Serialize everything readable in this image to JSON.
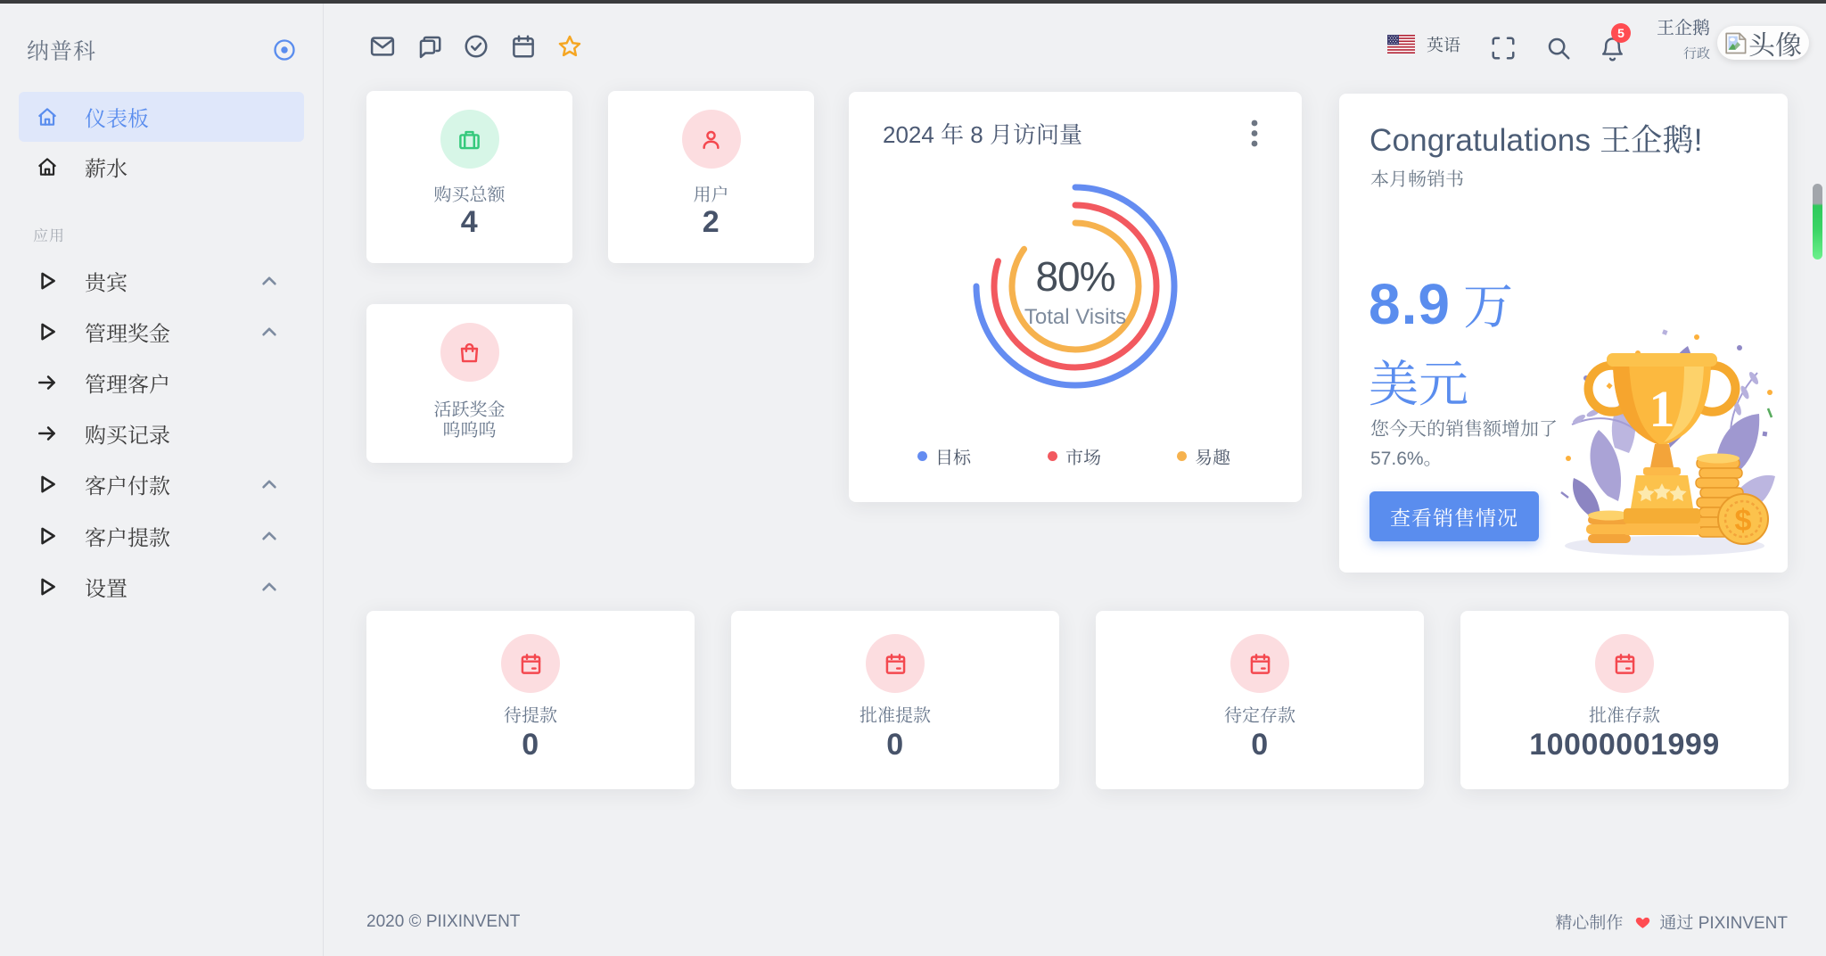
{
  "brand": {
    "name": "纳普科",
    "toggle_icon": "radio-circle-icon"
  },
  "sidebar": {
    "items": [
      {
        "type": "link",
        "label": "仪表板",
        "icon": "home-icon",
        "active": true
      },
      {
        "type": "link",
        "label": "薪水",
        "icon": "home-icon",
        "active": false
      },
      {
        "type": "section",
        "label": "应用"
      },
      {
        "type": "group",
        "label": "贵宾",
        "icon": "play-icon",
        "chevron": "chevron-up-icon"
      },
      {
        "type": "group",
        "label": "管理奖金",
        "icon": "play-icon",
        "chevron": "chevron-up-icon"
      },
      {
        "type": "link",
        "label": "管理客户",
        "icon": "arrow-right-icon",
        "active": false
      },
      {
        "type": "link",
        "label": "购买记录",
        "icon": "arrow-right-icon",
        "active": false
      },
      {
        "type": "group",
        "label": "客户付款",
        "icon": "play-icon",
        "chevron": "chevron-up-icon"
      },
      {
        "type": "group",
        "label": "客户提款",
        "icon": "play-icon",
        "chevron": "chevron-up-icon"
      },
      {
        "type": "group",
        "label": "设置",
        "icon": "play-icon",
        "chevron": "chevron-up-icon"
      }
    ]
  },
  "navbar": {
    "left_icons": [
      {
        "name": "mail-icon"
      },
      {
        "name": "chat-icon"
      },
      {
        "name": "check-circle-icon"
      },
      {
        "name": "calendar-icon"
      },
      {
        "name": "star-icon"
      }
    ],
    "language": {
      "flag": "us-flag-icon",
      "label": "英语"
    },
    "fullscreen_icon": "fullscreen-icon",
    "search_icon": "search-icon",
    "bell_icon": "bell-icon",
    "notification_count": "5",
    "user": {
      "name": "王企鹅",
      "role": "行政",
      "avatar_alt": "头像"
    }
  },
  "stats_cards": [
    {
      "title": "购买总额",
      "value": "4",
      "icon": "briefcase-icon",
      "color": "green"
    },
    {
      "title": "用户",
      "value": "2",
      "icon": "user-icon",
      "color": "red"
    },
    {
      "title": "活跃奖金",
      "subtitle": "呜呜呜",
      "icon": "shopping-bag-icon",
      "color": "red"
    }
  ],
  "chart_card": {
    "title": "2024 年 8 月访问量",
    "menu_icon": "kebab-menu-icon"
  },
  "chart_data": {
    "type": "radialBar",
    "title": "2024 年 8 月访问量",
    "series": [
      {
        "name": "目标",
        "value": 75,
        "color": "#648cf1"
      },
      {
        "name": "市场",
        "value": 80,
        "color": "#f2595f"
      },
      {
        "name": "易趣",
        "value": 85,
        "color": "#f6b24e"
      }
    ],
    "center_label": "80%",
    "center_sublabel": "Total Visits",
    "legend_position": "bottom",
    "start_angle": 0,
    "max": 100
  },
  "congrats_card": {
    "title_en": "Congratulations",
    "title_zh": "王企鹅!",
    "subtitle": "本月畅销书",
    "amount_value": "8.9",
    "amount_unit": "万",
    "amount_line2": "美元",
    "description_line1": "您今天的销售额增加了",
    "description_line2": "57.6%。",
    "button_label": "查看销售情况",
    "trophy_number": "1",
    "coin_symbol": "$",
    "illustration": "trophy-illustration"
  },
  "deposit_cards": [
    {
      "title": "待提款",
      "value": "0",
      "icon": "calendar-event-icon"
    },
    {
      "title": "批准提款",
      "value": "0",
      "icon": "calendar-event-icon"
    },
    {
      "title": "待定存款",
      "value": "0",
      "icon": "calendar-event-icon"
    },
    {
      "title": "批准存款",
      "value": "10000001999",
      "icon": "calendar-event-icon"
    }
  ],
  "footer": {
    "left": "2020 © PIIXINVENT",
    "right_pre": "精心制作",
    "right_post": "通过  PIXINVENT"
  },
  "colors": {
    "primary": "#5a8dee",
    "success": "#35c97c",
    "danger": "#f4484f",
    "warning": "#f5a623",
    "badge": "#ff4c51",
    "heading": "#495563",
    "muted": "#6e7b8a",
    "background": "#f0f1f3",
    "card": "#ffffff",
    "active_menu_bg": "#dfe7fa",
    "scrollbar_green": "#2fc95c"
  }
}
